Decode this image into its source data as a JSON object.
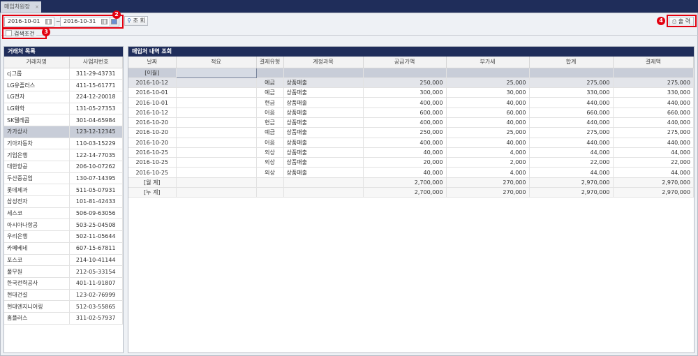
{
  "tab": {
    "title": "매입처원장",
    "close": "×"
  },
  "toolbar": {
    "date_from": "2016-10-01",
    "date_to": "2016-10-31",
    "tilde": "~",
    "search_label": "조 회",
    "print_label": "출 력",
    "filter_label": "검색조건",
    "markers": [
      "2",
      "3",
      "4"
    ]
  },
  "left": {
    "title": "거래처 목록",
    "columns": [
      "거래처명",
      "사업자번호"
    ],
    "rows": [
      [
        "cj그룹",
        "311-29-43731"
      ],
      [
        "LG유플러스",
        "411-15-61771"
      ],
      [
        "LG전자",
        "224-12-20018"
      ],
      [
        "LG화학",
        "131-05-27353"
      ],
      [
        "SK텔레콤",
        "301-04-65984"
      ],
      [
        "가가상사",
        "123-12-12345"
      ],
      [
        "기아자동차",
        "110-03-15229"
      ],
      [
        "기업은행",
        "122-14-77035"
      ],
      [
        "대한항공",
        "206-10-07262"
      ],
      [
        "두산중공업",
        "130-07-14395"
      ],
      [
        "롯데제과",
        "511-05-07931"
      ],
      [
        "삼성전자",
        "101-81-42433"
      ],
      [
        "세스코",
        "506-09-63056"
      ],
      [
        "아시아나항공",
        "503-25-04508"
      ],
      [
        "우리은행",
        "502-11-05644"
      ],
      [
        "카페베네",
        "607-15-67811"
      ],
      [
        "포스코",
        "214-10-41144"
      ],
      [
        "풀무원",
        "212-05-33154"
      ],
      [
        "한국전력공사",
        "401-11-91807"
      ],
      [
        "현대건설",
        "123-02-76999"
      ],
      [
        "현대엔지니어링",
        "512-03-55865"
      ],
      [
        "홈플러스",
        "311-02-57937"
      ]
    ],
    "selected": 5
  },
  "right": {
    "title": "매입처 내역 조회",
    "columns": [
      "날짜",
      "적요",
      "결제유형",
      "계정과목",
      "공급가액",
      "부가세",
      "합계",
      "결제액"
    ],
    "carry_label": "[이월]",
    "rows": [
      [
        "2016-10-12",
        "",
        "예금",
        "상품매출",
        "250,000",
        "25,000",
        "275,000",
        "275,000"
      ],
      [
        "2016-10-01",
        "",
        "예금",
        "상품매출",
        "300,000",
        "30,000",
        "330,000",
        "330,000"
      ],
      [
        "2016-10-01",
        "",
        "현금",
        "상품매출",
        "400,000",
        "40,000",
        "440,000",
        "440,000"
      ],
      [
        "2016-10-12",
        "",
        "어음",
        "상품매출",
        "600,000",
        "60,000",
        "660,000",
        "660,000"
      ],
      [
        "2016-10-20",
        "",
        "현금",
        "상품매출",
        "400,000",
        "40,000",
        "440,000",
        "440,000"
      ],
      [
        "2016-10-20",
        "",
        "예금",
        "상품매출",
        "250,000",
        "25,000",
        "275,000",
        "275,000"
      ],
      [
        "2016-10-20",
        "",
        "어음",
        "상품매출",
        "400,000",
        "40,000",
        "440,000",
        "440,000"
      ],
      [
        "2016-10-25",
        "",
        "외상",
        "상품매출",
        "40,000",
        "4,000",
        "44,000",
        "44,000"
      ],
      [
        "2016-10-25",
        "",
        "외상",
        "상품매출",
        "20,000",
        "2,000",
        "22,000",
        "22,000"
      ],
      [
        "2016-10-25",
        "",
        "외상",
        "상품매출",
        "40,000",
        "4,000",
        "44,000",
        "44,000"
      ]
    ],
    "totals": [
      [
        "[월 계]",
        "",
        "",
        "",
        "2,700,000",
        "270,000",
        "2,970,000",
        "2,970,000"
      ],
      [
        "[누 계]",
        "",
        "",
        "",
        "2,700,000",
        "270,000",
        "2,970,000",
        "2,970,000"
      ]
    ]
  },
  "colors": {
    "navy": "#1f2d5a",
    "highlight": "#e3000f",
    "selected": "#c8cdd8"
  }
}
